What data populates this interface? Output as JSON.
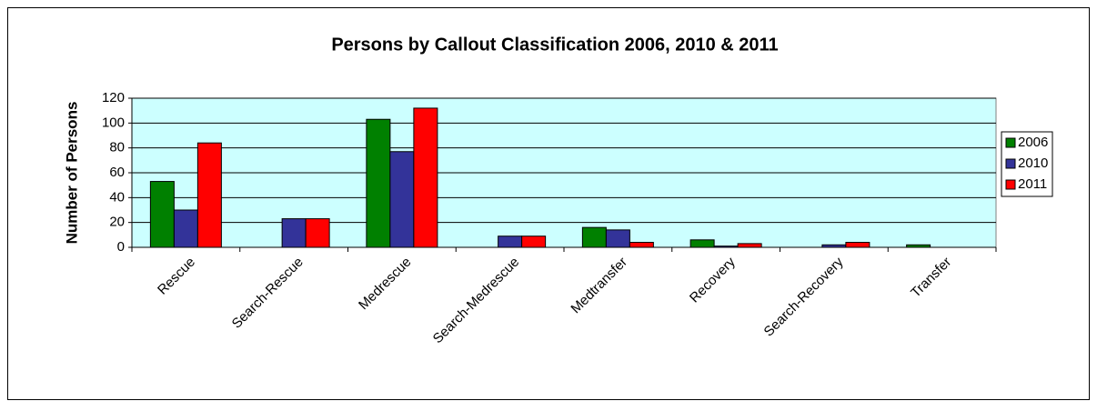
{
  "chart_data": {
    "type": "bar",
    "title": "Persons by Callout Classification 2006, 2010 & 2011",
    "y_label": "Number of Persons",
    "categories": [
      "Rescue",
      "Search-Rescue",
      "Medrescue",
      "Search-Medrescue",
      "Medtransfer",
      "Recovery",
      "Search-Recovery",
      "Transfer"
    ],
    "series": [
      {
        "name": "2006",
        "color": "#008000",
        "values": [
          53,
          0,
          103,
          0,
          16,
          6,
          0,
          2
        ]
      },
      {
        "name": "2010",
        "color": "#333399",
        "values": [
          30,
          23,
          77,
          9,
          14,
          1,
          2,
          0
        ]
      },
      {
        "name": "2011",
        "color": "#ff0000",
        "values": [
          84,
          23,
          112,
          9,
          4,
          3,
          4,
          0
        ]
      }
    ],
    "ylim": [
      0,
      120
    ],
    "yticks": [
      0,
      20,
      40,
      60,
      80,
      100,
      120
    ],
    "grid": true,
    "legend": "right"
  }
}
